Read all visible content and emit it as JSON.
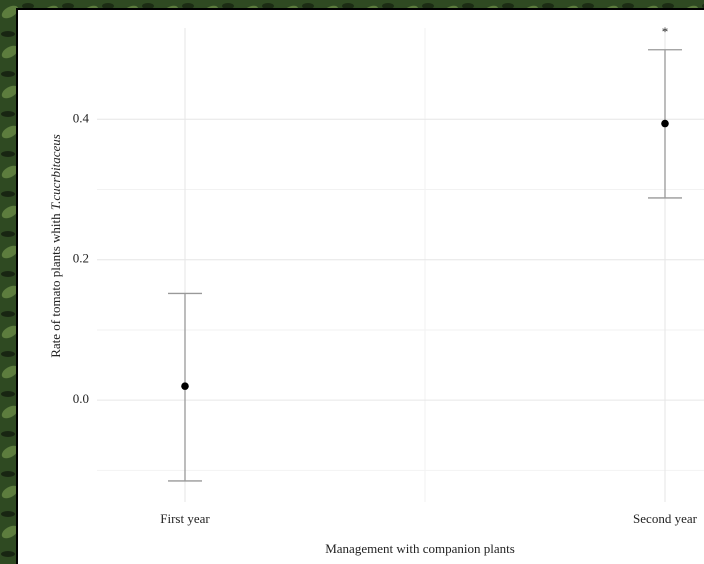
{
  "chart_data": {
    "type": "errorbar-points",
    "x_label": "Management with companion plants",
    "y_label": "Rate of tomato plants whith",
    "y_label_italic": "T.cucrbitaceus",
    "categories": [
      "First year",
      "Second year"
    ],
    "values": [
      0.02,
      0.394
    ],
    "lower": [
      -0.115,
      0.288
    ],
    "upper": [
      0.152,
      0.499
    ],
    "annotations": [
      null,
      "*"
    ],
    "color": "#000000",
    "errorbar_color": "#999999",
    "ylim": [
      -0.145,
      0.53
    ],
    "yticks": [
      {
        "value": 0,
        "label": "0.0"
      },
      0.2,
      0.4
    ],
    "y_minor_grid": [
      -0.1,
      0.1,
      0.3
    ],
    "grid": true
  }
}
